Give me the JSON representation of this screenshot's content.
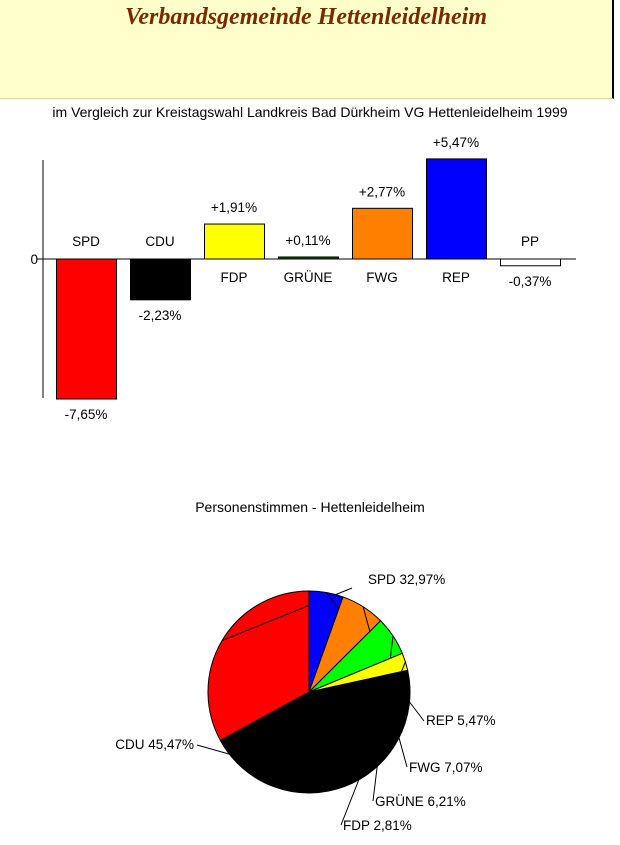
{
  "header": {
    "title": "Verbandsgemeinde Hettenleidelheim"
  },
  "chart_data": [
    {
      "type": "bar",
      "title": "im Vergleich zur Kreistagswahl Landkreis Bad Dürkheim VG Hettenleidelheim 1999",
      "categories": [
        "SPD",
        "CDU",
        "FDP",
        "GRÜNE",
        "FWG",
        "REP",
        "PP"
      ],
      "values": [
        -7.65,
        -2.23,
        1.91,
        0.11,
        2.77,
        5.47,
        -0.37
      ],
      "value_labels": [
        "-7,65%",
        "-2,23%",
        "+1,91%",
        "+0,11%",
        "+2,77%",
        "+5,47%",
        "-0,37%"
      ],
      "colors": [
        "#ff0000",
        "#000000",
        "#ffff00",
        "#006000",
        "#ff8000",
        "#0000ff",
        "#ffffff"
      ],
      "y_tick_labels": [
        "0"
      ],
      "ylim": [
        -7.65,
        5.47
      ],
      "grid": false
    },
    {
      "type": "pie",
      "title": "Personenstimmen - Hettenleidelheim",
      "slices": [
        {
          "label": "SPD",
          "value": 32.97,
          "value_label": "32,97%",
          "color": "#ff0000"
        },
        {
          "label": "REP",
          "value": 5.47,
          "value_label": "5,47%",
          "color": "#0000ff"
        },
        {
          "label": "FWG",
          "value": 7.07,
          "value_label": "7,07%",
          "color": "#ff8000"
        },
        {
          "label": "GRÜNE",
          "value": 6.21,
          "value_label": "6,21%",
          "color": "#00ff00"
        },
        {
          "label": "FDP",
          "value": 2.81,
          "value_label": "2,81%",
          "color": "#ffff00"
        },
        {
          "label": "CDU",
          "value": 45.47,
          "value_label": "45,47%",
          "color": "#000000"
        }
      ]
    }
  ]
}
